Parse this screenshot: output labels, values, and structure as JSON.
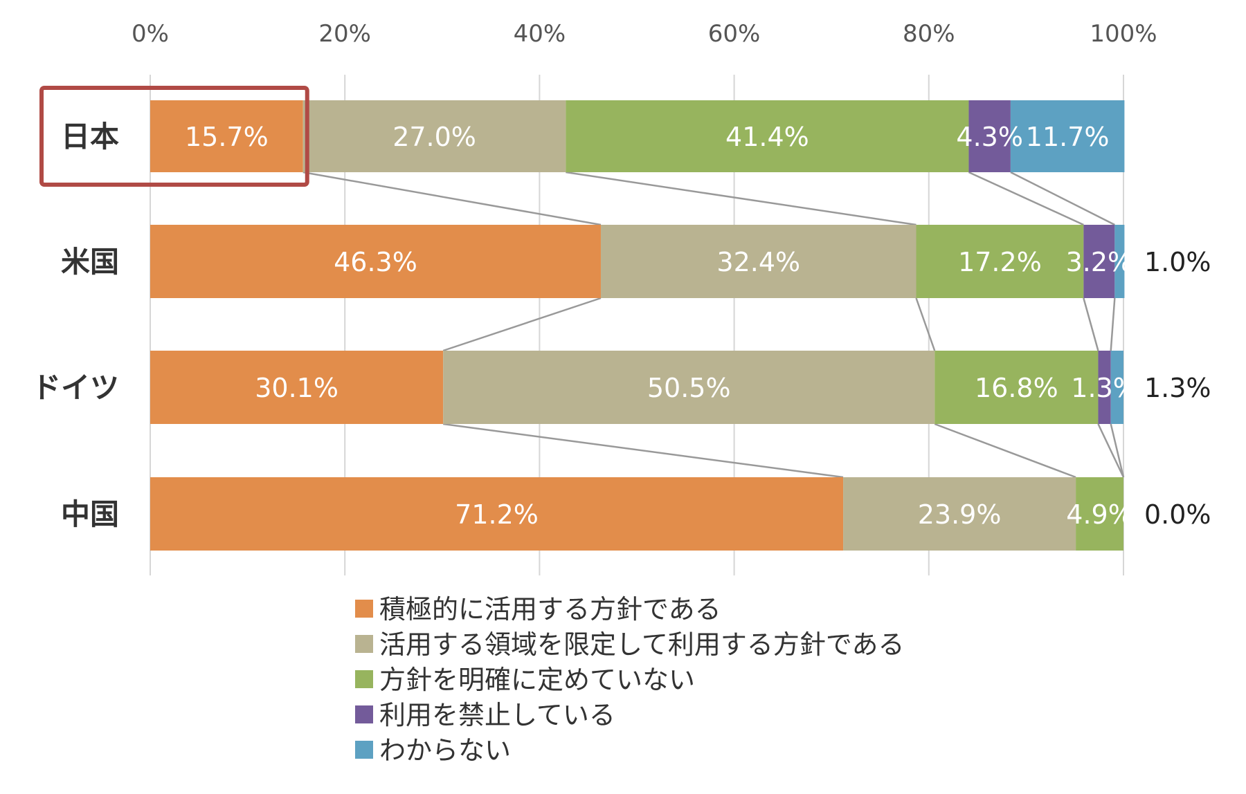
{
  "chart_data": {
    "type": "bar",
    "orientation": "horizontal",
    "stacked": true,
    "title": "",
    "xlabel": "",
    "ylabel": "",
    "xlim": [
      0,
      100
    ],
    "x_ticks": [
      "0%",
      "20%",
      "40%",
      "60%",
      "80%",
      "100%"
    ],
    "grid": true,
    "legend_position": "bottom",
    "categories": [
      "日本",
      "米国",
      "ドイツ",
      "中国"
    ],
    "highlight": "日本",
    "highlight_color": "#b04a45",
    "series": [
      {
        "name": "積極的に活用する方針である",
        "color": "#e28d4b",
        "values": [
          15.7,
          46.3,
          30.1,
          71.2
        ],
        "labels": [
          "15.7%",
          "46.3%",
          "30.1%",
          "71.2%"
        ]
      },
      {
        "name": "活用する領域を限定して利用する方針である",
        "color": "#b9b391",
        "values": [
          27.0,
          32.4,
          50.5,
          23.9
        ],
        "labels": [
          "27.0%",
          "32.4%",
          "50.5%",
          "23.9%"
        ]
      },
      {
        "name": "方針を明確に定めていない",
        "color": "#97b45e",
        "values": [
          41.4,
          17.2,
          16.8,
          4.9
        ],
        "labels": [
          "41.4%",
          "17.2%",
          "16.8%",
          "4.9%"
        ]
      },
      {
        "name": "利用を禁止している",
        "color": "#735b9a",
        "values": [
          4.3,
          3.2,
          1.3,
          0.0
        ],
        "labels": [
          "4.3%",
          "3.2%",
          "1.3%",
          ""
        ]
      },
      {
        "name": "わからない",
        "color": "#5da1c2",
        "values": [
          11.7,
          1.0,
          1.3,
          0.0
        ],
        "labels": [
          "11.7%",
          "1.0%",
          "1.3%",
          "0.0%"
        ]
      }
    ]
  }
}
